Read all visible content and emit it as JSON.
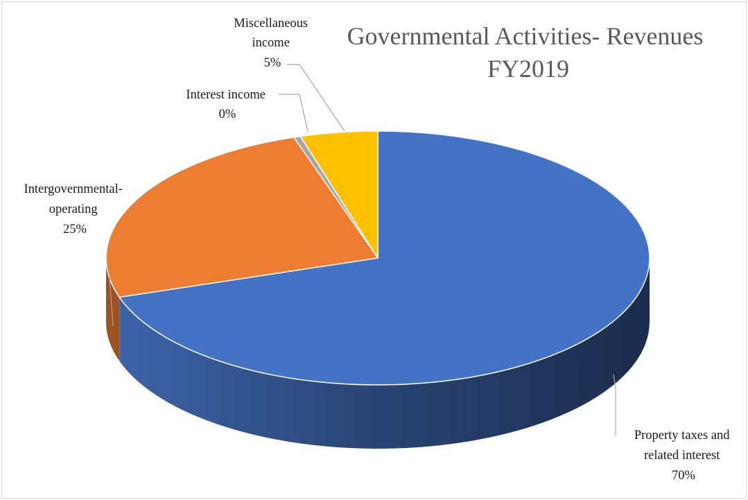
{
  "chart_data": {
    "type": "pie",
    "title_lines": [
      "Governmental Activities- Revenues",
      "FY2019"
    ],
    "slices": [
      {
        "name_lines": [
          "Property taxes and",
          "related interest"
        ],
        "value": 70,
        "percent_label": "70%",
        "color": "#4472C4",
        "side_color": "#2A4677"
      },
      {
        "name_lines": [
          "Intergovernmental-",
          "operating"
        ],
        "value": 25,
        "percent_label": "25%",
        "color": "#ED7D31",
        "side_color": "#9E5220"
      },
      {
        "name_lines": [
          "Interest income"
        ],
        "value": 0.4,
        "percent_label": "0%",
        "color": "#A5A5A5",
        "side_color": "#6E6E6E"
      },
      {
        "name_lines": [
          "Miscellaneous",
          "income"
        ],
        "value": 4.6,
        "percent_label": "5%",
        "color": "#FFC000",
        "side_color": "#A87F00"
      }
    ],
    "legend": "none",
    "style": "3d-pie"
  }
}
